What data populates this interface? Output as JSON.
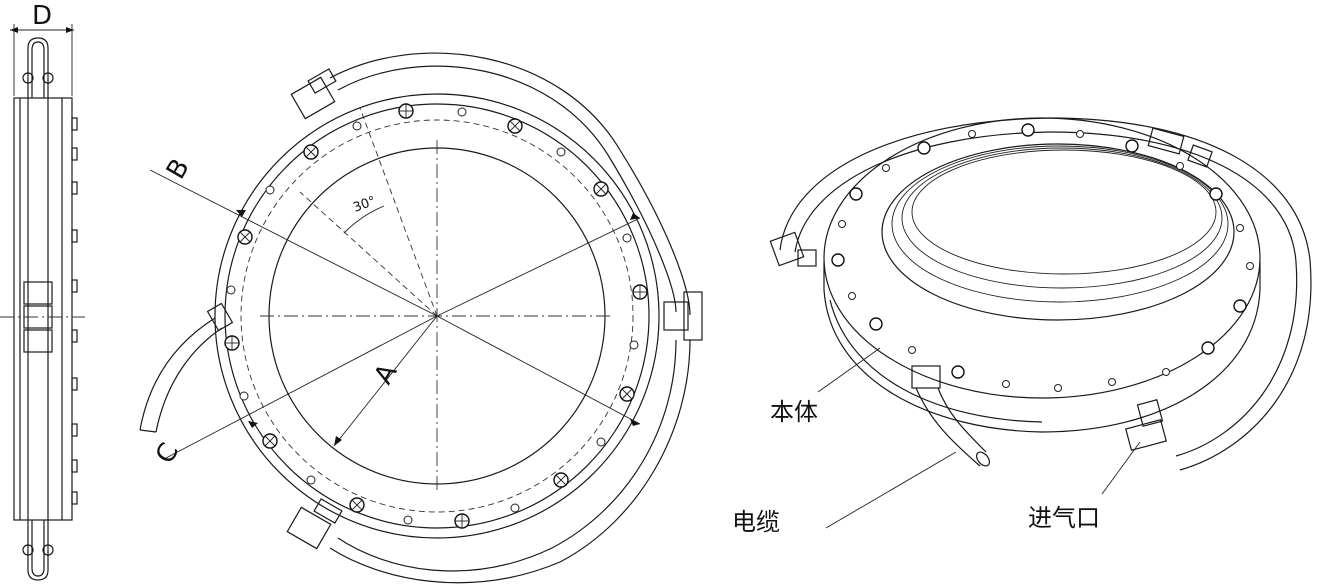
{
  "side_view": {
    "dimension_label": "D"
  },
  "front_view": {
    "dimension_labels": {
      "a": "A",
      "b": "B",
      "c": "C"
    },
    "angle_label": "30°"
  },
  "iso_view": {
    "callouts": {
      "body": "本体",
      "cable": "电缆",
      "air_inlet": "进气口"
    }
  }
}
